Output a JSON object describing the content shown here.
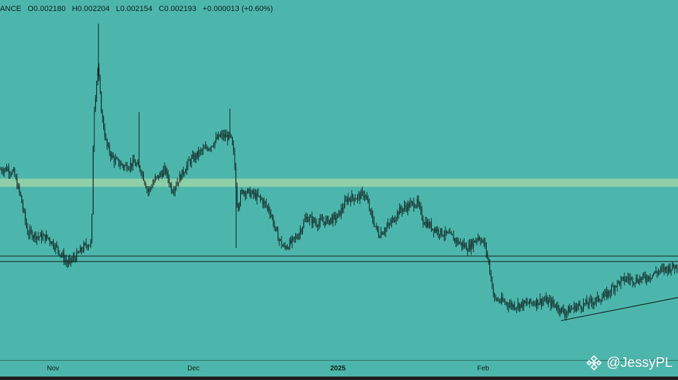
{
  "header": {
    "symbol_fragment": "ANCE",
    "open": "O0.002180",
    "high": "H0.002204",
    "low": "L0.002154",
    "close": "C0.002193",
    "change": "+0.000013 (+0.60%)"
  },
  "watermark": {
    "text": "@JessyPL",
    "logo_icon": "binance-logo-icon"
  },
  "colors": {
    "background": "#4db6ac",
    "candles": "#0b1a18",
    "zone": "#a5d6a7",
    "lines": "#0b1a18"
  },
  "chart_data": {
    "type": "candlestick",
    "x_tick_labels": [
      "Nov",
      "Dec",
      "2025",
      "Feb"
    ],
    "y_range": [
      0.0008,
      0.0061
    ],
    "price_path": [
      [
        0,
        0.0036
      ],
      [
        10,
        0.00362
      ],
      [
        20,
        0.00355
      ],
      [
        30,
        0.0032
      ],
      [
        40,
        0.00268
      ],
      [
        55,
        0.00262
      ],
      [
        70,
        0.0026
      ],
      [
        85,
        0.00242
      ],
      [
        98,
        0.00222
      ],
      [
        110,
        0.00232
      ],
      [
        125,
        0.0025
      ],
      [
        133,
        0.00252
      ],
      [
        136,
        0.0044
      ],
      [
        142,
        0.0051
      ],
      [
        148,
        0.0044
      ],
      [
        155,
        0.00395
      ],
      [
        165,
        0.00375
      ],
      [
        180,
        0.00365
      ],
      [
        195,
        0.0037
      ],
      [
        205,
        0.0036
      ],
      [
        215,
        0.00328
      ],
      [
        225,
        0.00345
      ],
      [
        240,
        0.0036
      ],
      [
        250,
        0.0033
      ],
      [
        262,
        0.0035
      ],
      [
        275,
        0.00372
      ],
      [
        290,
        0.00385
      ],
      [
        305,
        0.00395
      ],
      [
        320,
        0.0041
      ],
      [
        335,
        0.00408
      ],
      [
        340,
        0.0038
      ],
      [
        345,
        0.00305
      ],
      [
        352,
        0.0033
      ],
      [
        365,
        0.00325
      ],
      [
        378,
        0.00318
      ],
      [
        392,
        0.003
      ],
      [
        402,
        0.00265
      ],
      [
        412,
        0.00245
      ],
      [
        420,
        0.0025
      ],
      [
        432,
        0.00262
      ],
      [
        445,
        0.0029
      ],
      [
        460,
        0.00282
      ],
      [
        475,
        0.00285
      ],
      [
        490,
        0.0029
      ],
      [
        505,
        0.00318
      ],
      [
        520,
        0.0032
      ],
      [
        530,
        0.00325
      ],
      [
        540,
        0.0029
      ],
      [
        550,
        0.00265
      ],
      [
        565,
        0.00278
      ],
      [
        580,
        0.003
      ],
      [
        595,
        0.00308
      ],
      [
        606,
        0.00312
      ],
      [
        615,
        0.00285
      ],
      [
        628,
        0.00275
      ],
      [
        640,
        0.00268
      ],
      [
        655,
        0.00262
      ],
      [
        668,
        0.00252
      ],
      [
        680,
        0.00245
      ],
      [
        695,
        0.00262
      ],
      [
        705,
        0.00248
      ],
      [
        712,
        0.0021
      ],
      [
        718,
        0.0017
      ],
      [
        730,
        0.00166
      ],
      [
        745,
        0.0016
      ],
      [
        760,
        0.00162
      ],
      [
        775,
        0.00165
      ],
      [
        790,
        0.00168
      ],
      [
        805,
        0.00162
      ],
      [
        820,
        0.0015
      ],
      [
        835,
        0.00158
      ],
      [
        850,
        0.00162
      ],
      [
        865,
        0.00168
      ],
      [
        880,
        0.00175
      ],
      [
        895,
        0.00192
      ],
      [
        910,
        0.002
      ],
      [
        925,
        0.00198
      ],
      [
        940,
        0.00202
      ],
      [
        955,
        0.0021
      ],
      [
        970,
        0.00215
      ],
      [
        985,
        0.00219
      ]
    ],
    "spikes": [
      {
        "x": 143,
        "high": 0.00575
      },
      {
        "x": 202,
        "high": 0.00445
      },
      {
        "x": 334,
        "high": 0.0045
      },
      {
        "x": 343,
        "low": 0.00245
      }
    ],
    "support_zone": [
      0.00225,
      0.00233
    ],
    "resistance_zone": [
      0.00335,
      0.00347
    ],
    "trendline": {
      "from": [
        815,
        0.00138
      ],
      "to": [
        985,
        0.00172
      ]
    }
  }
}
